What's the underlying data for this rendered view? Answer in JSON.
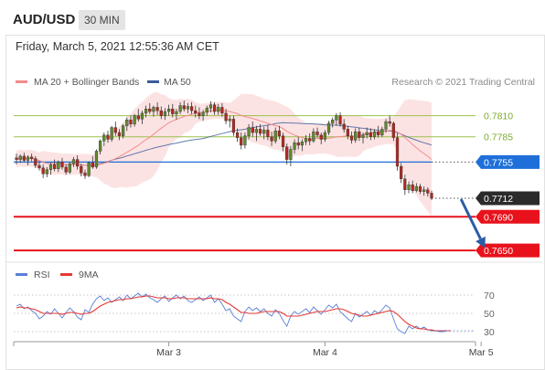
{
  "header": {
    "symbol": "AUD/USD",
    "timeframe": "30 MIN"
  },
  "datetime": "Friday, March 5, 2021 12:55:36 AM CET",
  "legend": {
    "bollinger": {
      "label": "MA 20 + Bollinger Bands",
      "color": "#f28c8c"
    },
    "ma50": {
      "label": "MA 50",
      "color": "#3a5b9c"
    }
  },
  "copyright": "Research © 2021 Trading Central",
  "rsi_legend": {
    "rsi": {
      "label": "RSI",
      "color": "#5b7fd6"
    },
    "ma9": {
      "label": "9MA",
      "color": "#e53935"
    }
  },
  "chart_data": [
    {
      "type": "candlestick",
      "ylim": [
        0.7635,
        0.784
      ],
      "x_ticks": [
        {
          "label": "Mar 3",
          "index": 40
        },
        {
          "label": "Mar 4",
          "index": 81
        },
        {
          "label": "Mar 5",
          "index": 122
        }
      ],
      "candles": [
        [
          0.776,
          0.7765,
          0.7752,
          0.7758
        ],
        [
          0.7758,
          0.7764,
          0.7754,
          0.7762
        ],
        [
          0.7762,
          0.7766,
          0.7755,
          0.7757
        ],
        [
          0.7757,
          0.7763,
          0.7751,
          0.7761
        ],
        [
          0.7761,
          0.7765,
          0.7756,
          0.7759
        ],
        [
          0.7759,
          0.7762,
          0.7748,
          0.7751
        ],
        [
          0.7751,
          0.7756,
          0.7745,
          0.7748
        ],
        [
          0.7748,
          0.7752,
          0.7736,
          0.7741
        ],
        [
          0.7741,
          0.7749,
          0.7737,
          0.7746
        ],
        [
          0.7746,
          0.7754,
          0.774,
          0.7752
        ],
        [
          0.7752,
          0.7758,
          0.7744,
          0.7747
        ],
        [
          0.7747,
          0.7757,
          0.7743,
          0.7755
        ],
        [
          0.7755,
          0.776,
          0.7746,
          0.7749
        ],
        [
          0.7749,
          0.7752,
          0.774,
          0.7743
        ],
        [
          0.7743,
          0.7755,
          0.7741,
          0.7753
        ],
        [
          0.7753,
          0.7761,
          0.7749,
          0.7758
        ],
        [
          0.7758,
          0.7763,
          0.7746,
          0.775
        ],
        [
          0.775,
          0.7753,
          0.7738,
          0.7742
        ],
        [
          0.7742,
          0.7746,
          0.7735,
          0.7739
        ],
        [
          0.7739,
          0.7756,
          0.7737,
          0.7754
        ],
        [
          0.7754,
          0.7762,
          0.7747,
          0.7749
        ],
        [
          0.7749,
          0.777,
          0.7747,
          0.7768
        ],
        [
          0.7768,
          0.7782,
          0.7764,
          0.778
        ],
        [
          0.778,
          0.779,
          0.7774,
          0.7787
        ],
        [
          0.7787,
          0.7792,
          0.7778,
          0.7782
        ],
        [
          0.7782,
          0.7798,
          0.7779,
          0.7796
        ],
        [
          0.7796,
          0.7803,
          0.7786,
          0.779
        ],
        [
          0.779,
          0.7794,
          0.7781,
          0.7786
        ],
        [
          0.7786,
          0.78,
          0.7783,
          0.7798
        ],
        [
          0.7798,
          0.7808,
          0.7792,
          0.7805
        ],
        [
          0.7805,
          0.781,
          0.7796,
          0.78
        ],
        [
          0.78,
          0.7812,
          0.7797,
          0.781
        ],
        [
          0.781,
          0.7818,
          0.7803,
          0.7806
        ],
        [
          0.7806,
          0.7816,
          0.78,
          0.7813
        ],
        [
          0.7813,
          0.7822,
          0.7808,
          0.7818
        ],
        [
          0.7818,
          0.7825,
          0.7812,
          0.7815
        ],
        [
          0.7815,
          0.7822,
          0.7809,
          0.782
        ],
        [
          0.782,
          0.7826,
          0.7811,
          0.7816
        ],
        [
          0.7816,
          0.7821,
          0.7806,
          0.781
        ],
        [
          0.781,
          0.7819,
          0.7805,
          0.7815
        ],
        [
          0.7815,
          0.7823,
          0.781,
          0.7818
        ],
        [
          0.7818,
          0.7824,
          0.7808,
          0.7812
        ],
        [
          0.7812,
          0.7818,
          0.7805,
          0.7815
        ],
        [
          0.7815,
          0.7826,
          0.7812,
          0.7822
        ],
        [
          0.7822,
          0.7828,
          0.7815,
          0.7818
        ],
        [
          0.7818,
          0.7825,
          0.7813,
          0.7821
        ],
        [
          0.7821,
          0.7826,
          0.7812,
          0.7816
        ],
        [
          0.7816,
          0.7822,
          0.7808,
          0.7813
        ],
        [
          0.7813,
          0.782,
          0.7806,
          0.781
        ],
        [
          0.781,
          0.7817,
          0.7804,
          0.7814
        ],
        [
          0.7814,
          0.7822,
          0.781,
          0.7819
        ],
        [
          0.7819,
          0.7827,
          0.7814,
          0.7823
        ],
        [
          0.7823,
          0.7826,
          0.7811,
          0.7815
        ],
        [
          0.7815,
          0.7824,
          0.7811,
          0.782
        ],
        [
          0.782,
          0.7825,
          0.7809,
          0.7813
        ],
        [
          0.7813,
          0.7818,
          0.78,
          0.7804
        ],
        [
          0.7804,
          0.781,
          0.7796,
          0.7806
        ],
        [
          0.7806,
          0.781,
          0.7786,
          0.779
        ],
        [
          0.779,
          0.7795,
          0.7779,
          0.7784
        ],
        [
          0.7784,
          0.779,
          0.777,
          0.7775
        ],
        [
          0.7775,
          0.779,
          0.7771,
          0.7786
        ],
        [
          0.7786,
          0.78,
          0.7782,
          0.7796
        ],
        [
          0.7796,
          0.7803,
          0.7785,
          0.779
        ],
        [
          0.779,
          0.7798,
          0.778,
          0.7794
        ],
        [
          0.7794,
          0.78,
          0.7786,
          0.7789
        ],
        [
          0.7789,
          0.7797,
          0.7782,
          0.7793
        ],
        [
          0.7793,
          0.7799,
          0.7781,
          0.7785
        ],
        [
          0.7785,
          0.7791,
          0.7774,
          0.778
        ],
        [
          0.778,
          0.7796,
          0.7777,
          0.7792
        ],
        [
          0.7792,
          0.7798,
          0.7782,
          0.7786
        ],
        [
          0.7786,
          0.779,
          0.7768,
          0.7773
        ],
        [
          0.7773,
          0.7777,
          0.7752,
          0.7758
        ],
        [
          0.7758,
          0.7774,
          0.775,
          0.777
        ],
        [
          0.777,
          0.7782,
          0.7765,
          0.7778
        ],
        [
          0.7778,
          0.7785,
          0.777,
          0.7775
        ],
        [
          0.7775,
          0.7782,
          0.7768,
          0.7779
        ],
        [
          0.7779,
          0.7787,
          0.7775,
          0.7783
        ],
        [
          0.7783,
          0.7789,
          0.7775,
          0.778
        ],
        [
          0.778,
          0.7795,
          0.7778,
          0.7791
        ],
        [
          0.7791,
          0.7796,
          0.7784,
          0.7787
        ],
        [
          0.7787,
          0.779,
          0.7776,
          0.7782
        ],
        [
          0.7782,
          0.7793,
          0.7779,
          0.779
        ],
        [
          0.779,
          0.7804,
          0.7787,
          0.7801
        ],
        [
          0.7801,
          0.7808,
          0.7796,
          0.7805
        ],
        [
          0.7805,
          0.7813,
          0.7798,
          0.781
        ],
        [
          0.781,
          0.7814,
          0.7797,
          0.78
        ],
        [
          0.78,
          0.7806,
          0.779,
          0.7794
        ],
        [
          0.7794,
          0.7798,
          0.7782,
          0.7786
        ],
        [
          0.7786,
          0.7791,
          0.7777,
          0.7781
        ],
        [
          0.7781,
          0.7795,
          0.7778,
          0.7791
        ],
        [
          0.7791,
          0.7796,
          0.778,
          0.7784
        ],
        [
          0.7784,
          0.779,
          0.7777,
          0.7787
        ],
        [
          0.7787,
          0.7796,
          0.7783,
          0.779
        ],
        [
          0.779,
          0.7795,
          0.7781,
          0.7785
        ],
        [
          0.7785,
          0.7794,
          0.7782,
          0.7791
        ],
        [
          0.7791,
          0.7798,
          0.7784,
          0.7787
        ],
        [
          0.7787,
          0.7797,
          0.7785,
          0.7794
        ],
        [
          0.7794,
          0.7806,
          0.779,
          0.7803
        ],
        [
          0.7803,
          0.781,
          0.7797,
          0.7801
        ],
        [
          0.7801,
          0.7803,
          0.778,
          0.7784
        ],
        [
          0.7784,
          0.7789,
          0.7745,
          0.775
        ],
        [
          0.775,
          0.7754,
          0.773,
          0.7735
        ],
        [
          0.7735,
          0.774,
          0.7716,
          0.7722
        ],
        [
          0.7722,
          0.7732,
          0.7718,
          0.7728
        ],
        [
          0.7728,
          0.7733,
          0.7718,
          0.7721
        ],
        [
          0.7721,
          0.773,
          0.7719,
          0.7726
        ],
        [
          0.7726,
          0.7729,
          0.7717,
          0.772
        ],
        [
          0.772,
          0.7726,
          0.7715,
          0.7722
        ],
        [
          0.7722,
          0.7725,
          0.7714,
          0.7718
        ],
        [
          0.7718,
          0.7721,
          0.771,
          0.7712
        ]
      ],
      "levels": [
        {
          "value": 0.781,
          "label": "0.7810",
          "kind": "resistance",
          "color": "#9ac24a"
        },
        {
          "value": 0.7785,
          "label": "0.7785",
          "kind": "resistance",
          "color": "#9ac24a"
        },
        {
          "value": 0.7755,
          "label": "0.7755",
          "kind": "pivot",
          "color": "#1e6fd9"
        },
        {
          "value": 0.7712,
          "label": "0.7712",
          "kind": "last",
          "color": "#2b2b2b"
        },
        {
          "value": 0.769,
          "label": "0.7690",
          "kind": "support",
          "color": "#e8121c"
        },
        {
          "value": 0.765,
          "label": "0.7650",
          "kind": "support",
          "color": "#e8121c"
        }
      ],
      "arrow": {
        "from_index": 116,
        "from_value": 0.7712,
        "to_index": 123,
        "to_value": 0.7653,
        "color": "#2d5ca6"
      }
    },
    {
      "type": "line",
      "name": "RSI",
      "ylim": [
        20,
        80
      ],
      "y_ticks": [
        70,
        50,
        30
      ],
      "x_ticks": [
        {
          "label": "Mar 3",
          "index": 40
        },
        {
          "label": "Mar 4",
          "index": 81
        },
        {
          "label": "Mar 5",
          "index": 122
        }
      ],
      "series": [
        {
          "name": "RSI",
          "color": "#5b7fd6",
          "values": [
            58,
            60,
            55,
            57,
            53,
            50,
            44,
            47,
            52,
            49,
            55,
            50,
            45,
            51,
            56,
            52,
            46,
            43,
            54,
            51,
            60,
            66,
            69,
            64,
            67,
            62,
            65,
            68,
            64,
            70,
            66,
            69,
            72,
            68,
            71,
            67,
            65,
            62,
            66,
            69,
            63,
            67,
            70,
            66,
            69,
            64,
            62,
            65,
            68,
            64,
            67,
            70,
            62,
            66,
            60,
            53,
            55,
            47,
            44,
            41,
            52,
            57,
            53,
            56,
            52,
            55,
            50,
            47,
            54,
            50,
            42,
            36,
            47,
            52,
            49,
            52,
            55,
            51,
            57,
            53,
            49,
            54,
            59,
            56,
            60,
            52,
            48,
            44,
            41,
            50,
            46,
            49,
            52,
            48,
            53,
            50,
            54,
            59,
            56,
            44,
            33,
            30,
            28,
            36,
            33,
            36,
            33,
            35,
            32,
            31,
            31,
            30,
            30,
            31,
            31
          ]
        },
        {
          "name": "9MA",
          "color": "#e53935",
          "values": [
            56,
            57,
            56,
            56,
            55,
            54,
            52,
            50,
            50,
            50,
            50,
            50,
            49,
            50,
            51,
            51,
            50,
            49,
            50,
            50,
            52,
            55,
            58,
            60,
            62,
            63,
            64,
            65,
            65,
            66,
            66,
            67,
            68,
            68,
            69,
            69,
            68,
            67,
            67,
            67,
            66,
            66,
            67,
            67,
            67,
            66,
            66,
            66,
            66,
            66,
            66,
            67,
            66,
            66,
            65,
            62,
            60,
            57,
            54,
            51,
            51,
            50,
            50,
            50,
            51,
            52,
            52,
            52,
            52,
            52,
            50,
            47,
            47,
            47,
            47,
            48,
            49,
            50,
            51,
            52,
            52,
            52,
            53,
            54,
            55,
            55,
            54,
            52,
            50,
            49,
            48,
            47,
            47,
            48,
            49,
            50,
            51,
            52,
            53,
            52,
            49,
            45,
            41,
            38,
            36,
            34,
            33,
            33,
            32,
            32,
            31,
            31,
            31,
            31,
            31
          ]
        }
      ]
    }
  ]
}
